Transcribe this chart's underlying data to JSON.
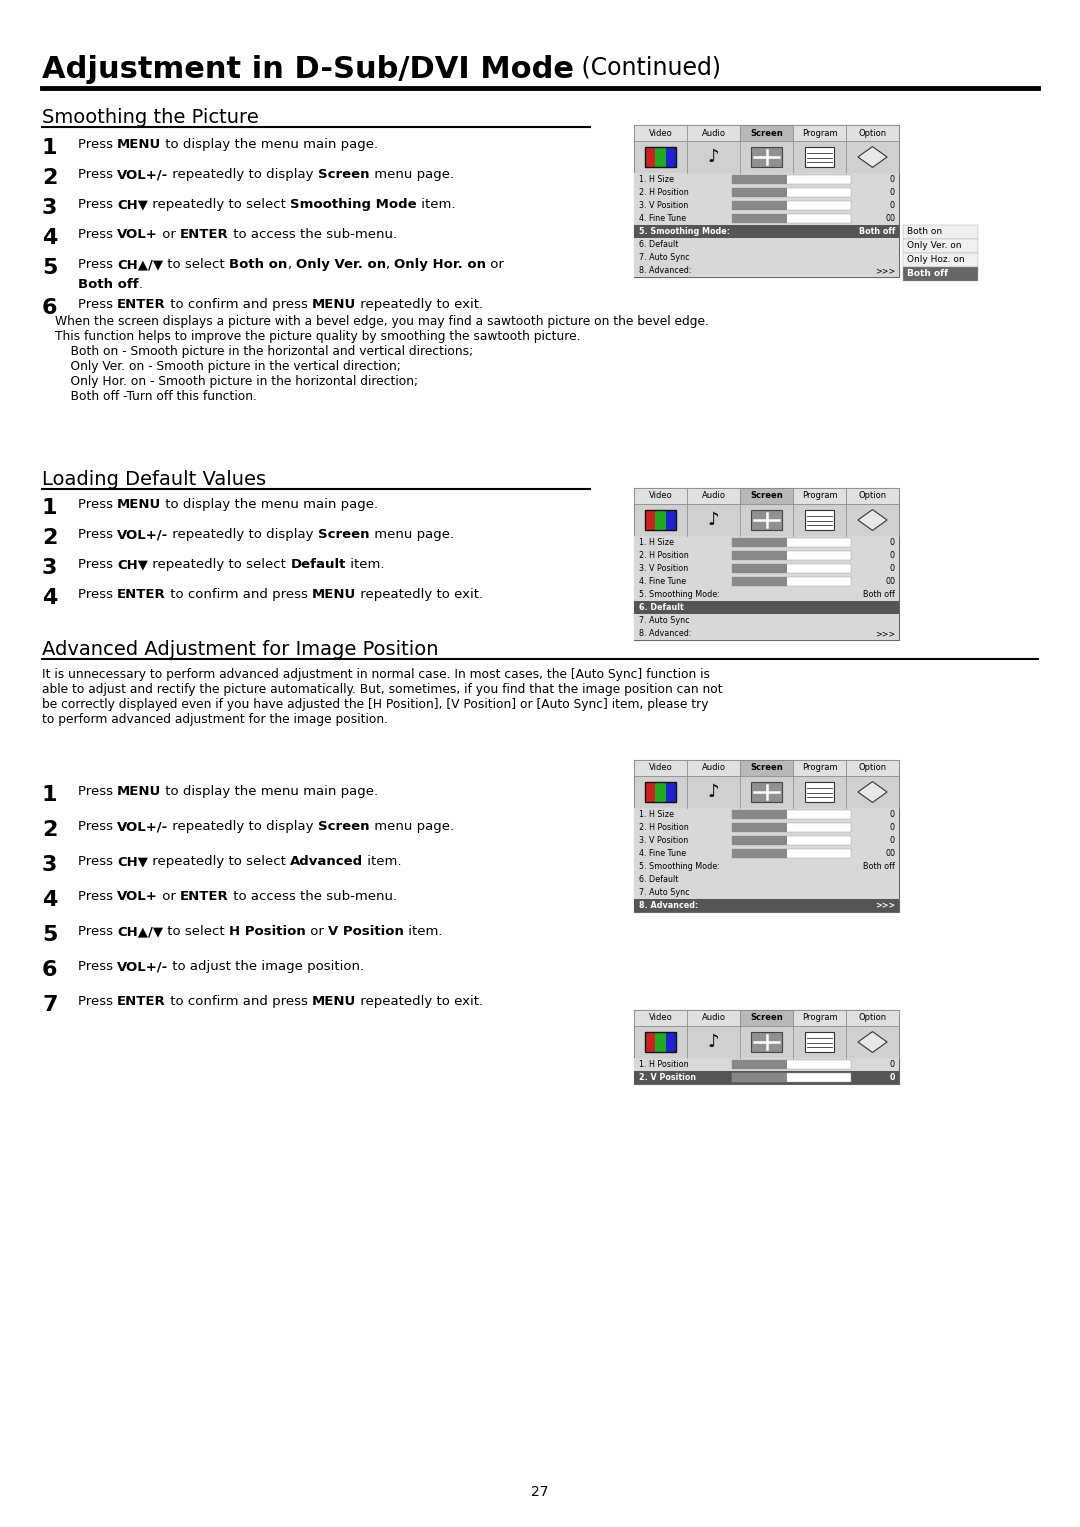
{
  "page_title_bold": "Adjustment in D-Sub/DVI Mode",
  "page_title_normal": " (Continued)",
  "background_color": "#ffffff",
  "page_number": "27",
  "section1_title": "Smoothing the Picture",
  "section1_note": [
    "When the screen displays a picture with a bevel edge, you may find a sawtooth picture on the bevel edge.",
    "This function helps to improve the picture quality by smoothing the sawtooth picture.",
    "    Both on - Smooth picture in the horizontal and vertical directions;",
    "    Only Ver. on - Smooth picture in the vertical direction;",
    "    Only Hor. on - Smooth picture in the horizontal direction;",
    "    Both off -Turn off this function."
  ],
  "section2_title": "Loading Default Values",
  "section3_title": "Advanced Adjustment for Image Position",
  "section3_intro": [
    "It is unnecessary to perform advanced adjustment in normal case. In most cases, the [Auto Sync] function is",
    "able to adjust and rectify the picture automatically. But, sometimes, if you find that the image position can not",
    "be correctly displayed even if you have adjusted the [H Position], [V Position] or [Auto Sync] item, please try",
    "to perform advanced adjustment for the image position."
  ]
}
